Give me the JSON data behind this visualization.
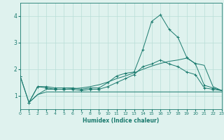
{
  "xlabel": "Humidex (Indice chaleur)",
  "background_color": "#dff2ee",
  "grid_color": "#b8ddd6",
  "line_color": "#1a7a6e",
  "xlim": [
    0,
    23
  ],
  "ylim": [
    0.5,
    4.5
  ],
  "xticks": [
    0,
    1,
    2,
    3,
    4,
    5,
    6,
    7,
    8,
    9,
    10,
    11,
    12,
    13,
    14,
    15,
    16,
    17,
    18,
    19,
    20,
    21,
    22,
    23
  ],
  "yticks": [
    1,
    2,
    3,
    4
  ],
  "line1_x": [
    0,
    1,
    2,
    3,
    4,
    5,
    6,
    7,
    8,
    9,
    10,
    11,
    12,
    13,
    14,
    15,
    16,
    17,
    18,
    19,
    20,
    21,
    22,
    23
  ],
  "line1_y": [
    1.75,
    0.75,
    1.35,
    1.35,
    1.3,
    1.3,
    1.3,
    1.25,
    1.3,
    1.3,
    1.5,
    1.75,
    1.85,
    1.9,
    2.75,
    3.8,
    4.05,
    3.5,
    3.2,
    2.45,
    2.2,
    1.4,
    1.3,
    1.2
  ],
  "line2_x": [
    0,
    1,
    2,
    3,
    4,
    5,
    6,
    7,
    8,
    9,
    10,
    11,
    12,
    13,
    14,
    15,
    16,
    17,
    18,
    19,
    20,
    21,
    22,
    23
  ],
  "line2_y": [
    1.75,
    0.75,
    1.35,
    1.3,
    1.25,
    1.25,
    1.25,
    1.2,
    1.25,
    1.25,
    1.35,
    1.5,
    1.65,
    1.8,
    2.1,
    2.2,
    2.35,
    2.2,
    2.1,
    1.9,
    1.8,
    1.3,
    1.25,
    1.2
  ],
  "line3_x": [
    1,
    2,
    3,
    4,
    5,
    6,
    7,
    8,
    9,
    10,
    11,
    12,
    13,
    14,
    15,
    16,
    17,
    18,
    19,
    20,
    21,
    22,
    23
  ],
  "line3_y": [
    0.75,
    1.05,
    1.15,
    1.15,
    1.15,
    1.15,
    1.15,
    1.15,
    1.15,
    1.15,
    1.15,
    1.15,
    1.15,
    1.15,
    1.15,
    1.15,
    1.15,
    1.15,
    1.15,
    1.15,
    1.15,
    1.15,
    1.15
  ],
  "line4_x": [
    1,
    2,
    3,
    4,
    5,
    6,
    7,
    8,
    9,
    10,
    11,
    12,
    13,
    14,
    15,
    16,
    17,
    18,
    19,
    20,
    21,
    22,
    23
  ],
  "line4_y": [
    0.75,
    1.05,
    1.25,
    1.25,
    1.25,
    1.27,
    1.3,
    1.35,
    1.42,
    1.52,
    1.65,
    1.75,
    1.87,
    2.0,
    2.12,
    2.22,
    2.3,
    2.35,
    2.42,
    2.22,
    2.15,
    1.35,
    1.2
  ]
}
